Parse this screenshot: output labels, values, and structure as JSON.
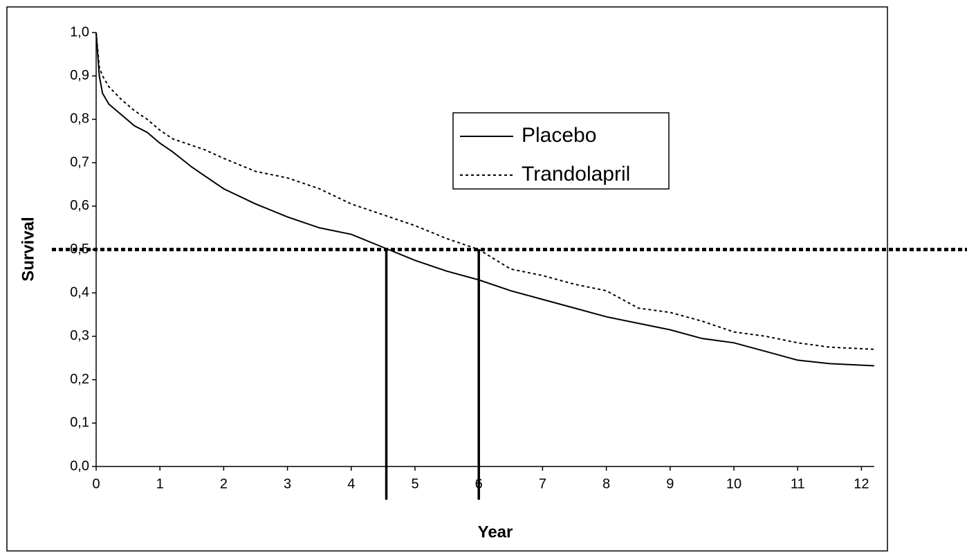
{
  "chart_data": {
    "type": "line",
    "xlabel": "Year",
    "ylabel": "Survival",
    "x": [
      0,
      0.05,
      0.1,
      0.2,
      0.4,
      0.6,
      0.8,
      1,
      1.2,
      1.5,
      1.7,
      2,
      2.5,
      3,
      3.5,
      4,
      4.5,
      5,
      5.5,
      6,
      6.5,
      7,
      7.5,
      8,
      8.5,
      9,
      9.5,
      10,
      10.5,
      11,
      11.5,
      12.2
    ],
    "series": [
      {
        "name": "Placebo",
        "color": "#000000",
        "style": "solid",
        "values": [
          1.0,
          0.9,
          0.86,
          0.835,
          0.81,
          0.785,
          0.77,
          0.745,
          0.725,
          0.69,
          0.67,
          0.64,
          0.605,
          0.575,
          0.55,
          0.535,
          0.505,
          0.475,
          0.45,
          0.43,
          0.405,
          0.385,
          0.365,
          0.345,
          0.33,
          0.315,
          0.295,
          0.285,
          0.265,
          0.245,
          0.237,
          0.232
        ]
      },
      {
        "name": "Trandolapril",
        "color": "#000000",
        "style": "dotted",
        "values": [
          1.0,
          0.92,
          0.9,
          0.875,
          0.845,
          0.82,
          0.8,
          0.775,
          0.755,
          0.74,
          0.73,
          0.71,
          0.68,
          0.665,
          0.64,
          0.605,
          0.58,
          0.555,
          0.525,
          0.5,
          0.455,
          0.44,
          0.42,
          0.405,
          0.365,
          0.355,
          0.335,
          0.31,
          0.3,
          0.285,
          0.275,
          0.27
        ]
      }
    ],
    "xlim": [
      0,
      12.2
    ],
    "xticks": [
      0,
      1,
      2,
      3,
      4,
      5,
      6,
      7,
      8,
      9,
      10,
      11,
      12
    ],
    "ylim": [
      0,
      1
    ],
    "yticks": [
      {
        "value": 0,
        "label": "0,0"
      },
      {
        "value": 0.1,
        "label": "0,1"
      },
      {
        "value": 0.2,
        "label": "0,2"
      },
      {
        "value": 0.3,
        "label": "0,3"
      },
      {
        "value": 0.4,
        "label": "0,4"
      },
      {
        "value": 0.5,
        "label": "0,5"
      },
      {
        "value": 0.6,
        "label": "0,6"
      },
      {
        "value": 0.7,
        "label": "0,7"
      },
      {
        "value": 0.8,
        "label": "0,8"
      },
      {
        "value": 0.9,
        "label": "0,9"
      },
      {
        "value": 1,
        "label": "1,0"
      }
    ],
    "grid": false,
    "reference_lines": {
      "y": 0.5,
      "x": [
        4.55,
        6.0
      ]
    }
  }
}
